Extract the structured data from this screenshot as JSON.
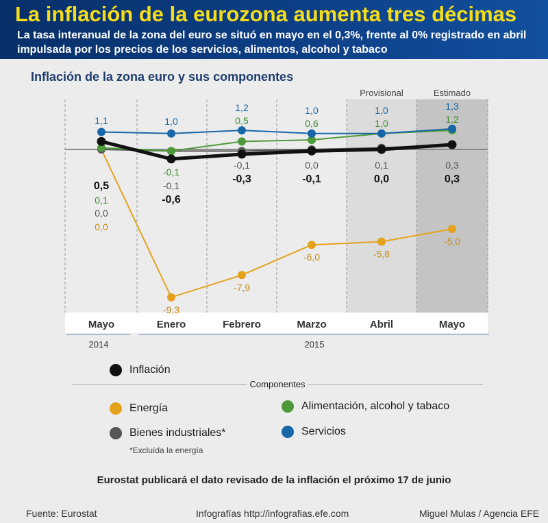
{
  "header": {
    "title": "La inflación de la eurozona aumenta tres décimas",
    "subtitle": "La tasa interanual de la zona del euro se situó en mayo en el 0,3%, frente al 0% registrado en abril impulsada por los precios de los servicios, alimentos, alcohol y tabaco"
  },
  "colors": {
    "inflation": "#111111",
    "energy": "#e4a21c",
    "food": "#4e9a3a",
    "industrial": "#555555",
    "services": "#1766a8",
    "energy_text": "#c58a10",
    "food_text": "#3a8a2a",
    "services_text": "#1766a8"
  },
  "chart_data": {
    "type": "line",
    "title": "Inflación de la zona euro y sus componentes",
    "categories": [
      "Mayo",
      "Enero",
      "Febrero",
      "Marzo",
      "Abril",
      "Mayo"
    ],
    "year_labels": [
      "2014",
      "2015"
    ],
    "column_notes": [
      "",
      "",
      "",
      "",
      "Provisional",
      "Estimado"
    ],
    "series": [
      {
        "name": "Inflación",
        "key": "inflation",
        "values": [
          0.5,
          -0.6,
          -0.3,
          -0.1,
          0.0,
          0.3
        ],
        "labels": [
          "0,5",
          "-0,6",
          "-0,3",
          "-0,1",
          "0,0",
          "0,3"
        ]
      },
      {
        "name": "Energía",
        "key": "energy",
        "values": [
          0.0,
          -9.3,
          -7.9,
          -6.0,
          -5.8,
          -5.0
        ],
        "labels": [
          "0,0",
          "-9,3",
          "-7,9",
          "-6,0",
          "-5,8",
          "-5,0"
        ]
      },
      {
        "name": "Alimentación, alcohol y tabaco",
        "key": "food",
        "values": [
          0.1,
          -0.1,
          0.5,
          0.6,
          1.0,
          1.2
        ],
        "labels": [
          "0,1",
          "-0,1",
          "0,5",
          "0,6",
          "1,0",
          "1,2"
        ]
      },
      {
        "name": "Bienes industriales*",
        "key": "industrial",
        "values": [
          0.0,
          -0.1,
          -0.1,
          0.0,
          0.1,
          0.3
        ],
        "labels": [
          "0,0",
          "-0,1",
          "-0,1",
          "0,0",
          "0,1",
          "0,3"
        ]
      },
      {
        "name": "Servicios",
        "key": "services",
        "values": [
          1.1,
          1.0,
          1.2,
          1.0,
          1.0,
          1.3
        ],
        "labels": [
          "1,1",
          "1,0",
          "1,2",
          "1,0",
          "1,0",
          "1,3"
        ]
      }
    ],
    "ylim": [
      -10,
      2
    ]
  },
  "legend": {
    "inflation": "Inflación",
    "components_title": "Componentes",
    "energy": "Energía",
    "food": "Alimentación, alcohol y tabaco",
    "industrial": "Bienes industriales*",
    "services": "Servicios",
    "footnote": "*Excluída la energía"
  },
  "note": "Eurostat publicará el dato revisado de la inflación el próximo 17 de junio",
  "footer": {
    "source": "Fuente: Eurostat",
    "web": "Infografías http://infografias.efe.com",
    "author": "Miguel Mulas / Agencia EFE"
  }
}
